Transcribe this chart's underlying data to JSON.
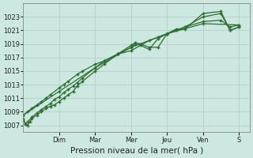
{
  "background_color": "#cce8e0",
  "grid_color": "#b0d0c8",
  "line_color": "#2d6e30",
  "xlabel": "Pression niveau de la mer( hPa )",
  "ylim": [
    1006,
    1025
  ],
  "yticks": [
    1007,
    1009,
    1011,
    1013,
    1015,
    1017,
    1019,
    1021,
    1023
  ],
  "day_labels": [
    "Dim",
    "Mar",
    "Mer",
    "Jeu",
    "Ven",
    "S"
  ],
  "day_positions": [
    1.333,
    2.667,
    4.0,
    5.333,
    6.667,
    8.0
  ],
  "xlim": [
    0,
    8.4
  ],
  "series1_x": [
    0.0,
    0.08,
    0.16,
    0.24,
    0.32,
    0.5,
    0.67,
    0.85,
    1.0,
    1.15,
    1.33,
    1.5,
    1.67,
    1.85,
    2.0,
    2.2,
    2.67,
    3.0,
    3.5,
    4.0,
    4.15,
    4.35,
    4.67,
    5.0,
    5.33,
    5.67,
    6.0,
    6.67,
    7.33,
    7.67,
    8.0
  ],
  "series1_y": [
    1008.0,
    1007.2,
    1007.0,
    1007.5,
    1008.0,
    1008.5,
    1009.0,
    1009.5,
    1009.8,
    1010.0,
    1010.5,
    1011.0,
    1011.5,
    1012.0,
    1012.8,
    1013.5,
    1015.0,
    1016.0,
    1017.5,
    1018.8,
    1019.2,
    1019.0,
    1018.5,
    1018.5,
    1020.5,
    1021.2,
    1021.2,
    1023.5,
    1023.8,
    1021.0,
    1021.5
  ],
  "series2_x": [
    0.0,
    0.08,
    0.16,
    0.32,
    0.5,
    0.67,
    0.85,
    1.0,
    1.15,
    1.33,
    1.5,
    1.67,
    1.85,
    2.0,
    2.2,
    2.67,
    3.0,
    3.5,
    4.0,
    4.15,
    4.35,
    4.67,
    5.0,
    5.33,
    5.67,
    6.0,
    6.67,
    7.33,
    7.67,
    8.0
  ],
  "series2_y": [
    1007.8,
    1007.2,
    1007.5,
    1008.2,
    1008.8,
    1009.3,
    1009.8,
    1010.2,
    1010.8,
    1011.2,
    1011.8,
    1012.3,
    1012.8,
    1013.3,
    1014.0,
    1015.5,
    1016.5,
    1017.5,
    1018.5,
    1019.0,
    1018.8,
    1018.2,
    1019.8,
    1020.5,
    1021.0,
    1021.5,
    1023.0,
    1023.5,
    1021.0,
    1021.5
  ],
  "series3_x": [
    0.0,
    0.16,
    0.32,
    0.5,
    0.67,
    0.85,
    1.0,
    1.33,
    1.5,
    1.67,
    2.0,
    2.2,
    2.67,
    3.0,
    3.5,
    4.0,
    4.67,
    5.0,
    5.33,
    6.0,
    6.67,
    7.33,
    7.67,
    8.0
  ],
  "series3_y": [
    1008.5,
    1009.0,
    1009.5,
    1010.0,
    1010.5,
    1011.0,
    1011.5,
    1012.5,
    1013.0,
    1013.5,
    1014.5,
    1015.0,
    1016.0,
    1016.5,
    1017.5,
    1018.0,
    1019.5,
    1020.0,
    1020.5,
    1021.5,
    1022.3,
    1022.5,
    1021.5,
    1021.8
  ],
  "series4_x": [
    0.0,
    1.33,
    2.67,
    4.0,
    5.33,
    6.67,
    8.0
  ],
  "series4_y": [
    1008.5,
    1012.0,
    1015.5,
    1018.5,
    1020.5,
    1022.0,
    1021.8
  ]
}
